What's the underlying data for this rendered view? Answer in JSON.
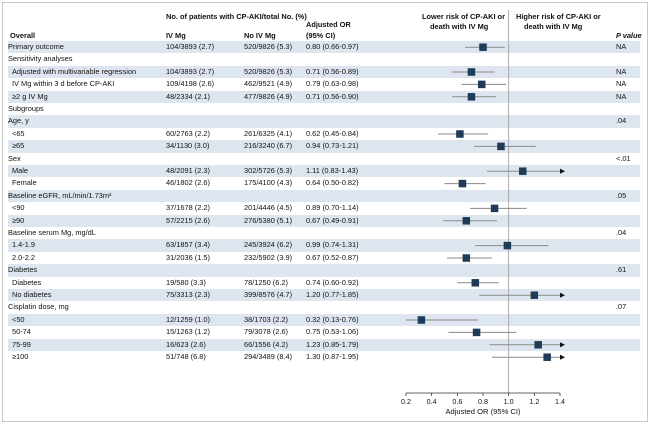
{
  "headers": {
    "overall": "Overall",
    "patients_group": "No. of patients with CP-AKI/total No. (%)",
    "iv_mg": "IV Mg",
    "no_iv_mg": "No IV Mg",
    "or_line1": "Adjusted OR",
    "or_line2": "(95% CI)",
    "lower_risk_line1": "Lower risk of CP-AKI or",
    "lower_risk_line2": "death with IV Mg",
    "higher_risk_line1": "Higher risk of CP-AKI or",
    "higher_risk_line2": "death with IV Mg",
    "p_value": "P value"
  },
  "rows": [
    {
      "label": "Primary outcome",
      "iv": "104/3893 (2.7)",
      "no_iv": "520/9826 (5.3)",
      "or_text": "0.80 (0.66-0.97)",
      "p": "NA",
      "indent": false,
      "shade": true
    },
    {
      "label": "Sensitivity analyses",
      "iv": "",
      "no_iv": "",
      "or_text": "",
      "p": "",
      "indent": false,
      "shade": false
    },
    {
      "label": "Adjusted with multivariable regression",
      "iv": "104/3893 (2.7)",
      "no_iv": "520/9826 (5.3)",
      "or_text": "0.71 (0.56-0.89)",
      "p": "NA",
      "indent": true,
      "shade": true
    },
    {
      "label": "IV Mg within 3 d before CP-AKI",
      "iv": "109/4198 (2.6)",
      "no_iv": "462/9521 (4.9)",
      "or_text": "0.79 (0.63-0.98)",
      "p": "NA",
      "indent": true,
      "shade": false
    },
    {
      "label": "≥2 g IV Mg",
      "iv": "48/2334 (2.1)",
      "no_iv": "477/9826 (4.9)",
      "or_text": "0.71 (0.56-0.90)",
      "p": "NA",
      "indent": true,
      "shade": true
    },
    {
      "label": "Subgroups",
      "iv": "",
      "no_iv": "",
      "or_text": "",
      "p": "",
      "indent": false,
      "shade": false
    },
    {
      "label": "Age, y",
      "iv": "",
      "no_iv": "",
      "or_text": "",
      "p": ".04",
      "indent": false,
      "shade": true
    },
    {
      "label": "<65",
      "iv": "60/2763 (2.2)",
      "no_iv": "261/6325 (4.1)",
      "or_text": "0.62 (0.45-0.84)",
      "p": "",
      "indent": true,
      "shade": false
    },
    {
      "label": "≥65",
      "iv": "34/1130 (3.0)",
      "no_iv": "216/3240 (6.7)",
      "or_text": "0.94 (0.73-1.21)",
      "p": "",
      "indent": true,
      "shade": true
    },
    {
      "label": "Sex",
      "iv": "",
      "no_iv": "",
      "or_text": "",
      "p": "<.01",
      "indent": false,
      "shade": false
    },
    {
      "label": "Male",
      "iv": "48/2091 (2.3)",
      "no_iv": "302/5726 (5.3)",
      "or_text": "1.11 (0.83-1.43)",
      "p": "",
      "indent": true,
      "shade": true
    },
    {
      "label": "Female",
      "iv": "46/1802 (2.6)",
      "no_iv": "175/4100 (4.3)",
      "or_text": "0.64 (0.50-0.82)",
      "p": "",
      "indent": true,
      "shade": false
    },
    {
      "label": "Baseline eGFR, mL/min/1.73m²",
      "iv": "",
      "no_iv": "",
      "or_text": "",
      "p": ".05",
      "indent": false,
      "shade": true
    },
    {
      "label": "<90",
      "iv": "37/1678 (2.2)",
      "no_iv": "201/4446 (4.5)",
      "or_text": "0.89 (0.70-1.14)",
      "p": "",
      "indent": true,
      "shade": false
    },
    {
      "label": "≥90",
      "iv": "57/2215 (2.6)",
      "no_iv": "276/5380 (5.1)",
      "or_text": "0.67 (0.49-0.91)",
      "p": "",
      "indent": true,
      "shade": true
    },
    {
      "label": "Baseline serum Mg, mg/dL",
      "iv": "",
      "no_iv": "",
      "or_text": "",
      "p": ".04",
      "indent": false,
      "shade": false
    },
    {
      "label": "1.4-1.9",
      "iv": "63/1857 (3.4)",
      "no_iv": "245/3924 (6.2)",
      "or_text": "0.99 (0.74-1.31)",
      "p": "",
      "indent": true,
      "shade": true
    },
    {
      "label": "2.0-2.2",
      "iv": "31/2036 (1.5)",
      "no_iv": "232/5902 (3.9)",
      "or_text": "0.67 (0.52-0.87)",
      "p": "",
      "indent": true,
      "shade": false
    },
    {
      "label": "Diabetes",
      "iv": "",
      "no_iv": "",
      "or_text": "",
      "p": ".61",
      "indent": false,
      "shade": true
    },
    {
      "label": "Diabetes",
      "iv": "19/580 (3.3)",
      "no_iv": "78/1250 (6.2)",
      "or_text": "0.74 (0.60-0.92)",
      "p": "",
      "indent": true,
      "shade": false
    },
    {
      "label": "No diabetes",
      "iv": "75/3313 (2.3)",
      "no_iv": "399/8576 (4.7)",
      "or_text": "1.20 (0.77-1.85)",
      "p": "",
      "indent": true,
      "shade": true
    },
    {
      "label": "Cisplatin dose, mg",
      "iv": "",
      "no_iv": "",
      "or_text": "",
      "p": ".07",
      "indent": false,
      "shade": false
    },
    {
      "label": "<50",
      "iv": "12/1259 (1.0)",
      "no_iv": "38/1703 (2.2)",
      "or_text": "0.32 (0.13-0.76)",
      "p": "",
      "indent": true,
      "shade": true
    },
    {
      "label": "50-74",
      "iv": "15/1263 (1.2)",
      "no_iv": "79/3078 (2.6)",
      "or_text": "0.75 (0.53-1.06)",
      "p": "",
      "indent": true,
      "shade": false
    },
    {
      "label": "75-99",
      "iv": "16/623 (2.6)",
      "no_iv": "66/1556 (4.2)",
      "or_text": "1.23 (0.85-1.79)",
      "p": "",
      "indent": true,
      "shade": true
    },
    {
      "label": "≥100",
      "iv": "51/748 (6.8)",
      "no_iv": "294/3489 (8.4)",
      "or_text": "1.30 (0.87-1.95)",
      "p": "",
      "indent": true,
      "shade": false
    }
  ],
  "chart_data": {
    "type": "forest",
    "xlabel": "Adjusted OR (95% CI)",
    "xlim": [
      0.2,
      1.4
    ],
    "xticks": [
      "0.2",
      "0.4",
      "0.6",
      "0.8",
      "1.0",
      "1.2",
      "1.4"
    ],
    "reference_line": 1.0,
    "marker_color": "#1f3b57",
    "ci_color": "#8a8a8a",
    "points": [
      {
        "row": 0,
        "or": 0.8,
        "lo": 0.66,
        "hi": 0.97
      },
      {
        "row": 2,
        "or": 0.71,
        "lo": 0.56,
        "hi": 0.89
      },
      {
        "row": 3,
        "or": 0.79,
        "lo": 0.63,
        "hi": 0.98
      },
      {
        "row": 4,
        "or": 0.71,
        "lo": 0.56,
        "hi": 0.9
      },
      {
        "row": 7,
        "or": 0.62,
        "lo": 0.45,
        "hi": 0.84
      },
      {
        "row": 8,
        "or": 0.94,
        "lo": 0.73,
        "hi": 1.21
      },
      {
        "row": 10,
        "or": 1.11,
        "lo": 0.83,
        "hi": 1.43
      },
      {
        "row": 11,
        "or": 0.64,
        "lo": 0.5,
        "hi": 0.82
      },
      {
        "row": 13,
        "or": 0.89,
        "lo": 0.7,
        "hi": 1.14
      },
      {
        "row": 14,
        "or": 0.67,
        "lo": 0.49,
        "hi": 0.91
      },
      {
        "row": 16,
        "or": 0.99,
        "lo": 0.74,
        "hi": 1.31
      },
      {
        "row": 17,
        "or": 0.67,
        "lo": 0.52,
        "hi": 0.87
      },
      {
        "row": 19,
        "or": 0.74,
        "lo": 0.6,
        "hi": 0.92
      },
      {
        "row": 20,
        "or": 1.2,
        "lo": 0.77,
        "hi": 1.85
      },
      {
        "row": 22,
        "or": 0.32,
        "lo": 0.13,
        "hi": 0.76
      },
      {
        "row": 23,
        "or": 0.75,
        "lo": 0.53,
        "hi": 1.06
      },
      {
        "row": 24,
        "or": 1.23,
        "lo": 0.85,
        "hi": 1.79
      },
      {
        "row": 25,
        "or": 1.3,
        "lo": 0.87,
        "hi": 1.95
      }
    ]
  }
}
